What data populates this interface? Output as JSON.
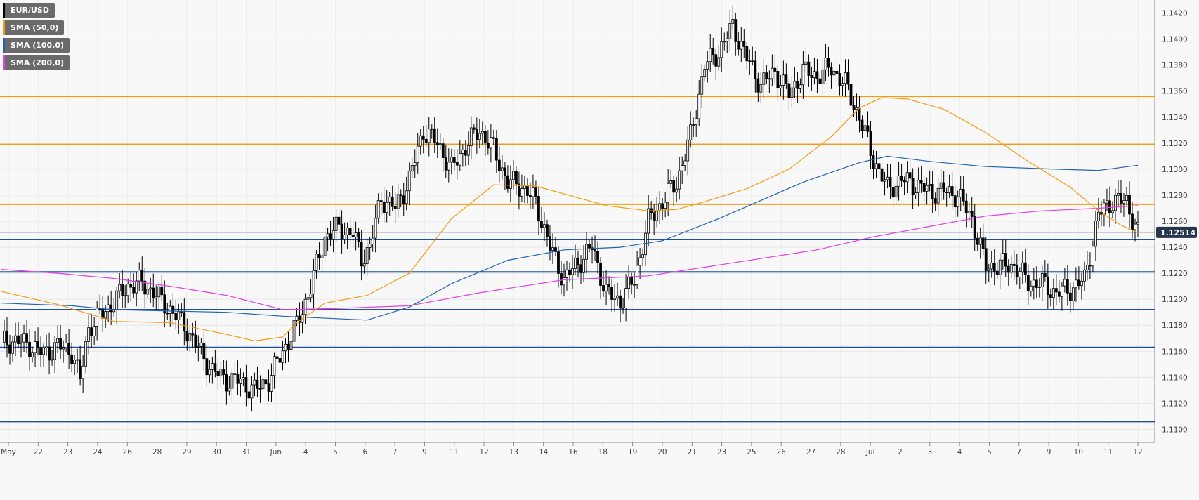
{
  "chart_data": {
    "type": "candlestick",
    "symbol": "EUR/USD",
    "last_price_label": "1.12514",
    "last_price": 1.12514,
    "ylim": [
      1.109,
      1.143
    ],
    "y_ticks": [
      "1.1100",
      "1.1120",
      "1.1140",
      "1.1160",
      "1.1180",
      "1.1200",
      "1.1220",
      "1.1240",
      "1.1260",
      "1.1280",
      "1.1300",
      "1.1320",
      "1.1340",
      "1.1360",
      "1.1380",
      "1.1400",
      "1.1420"
    ],
    "x_ticks": [
      "May",
      "22",
      "23",
      "24",
      "26",
      "28",
      "29",
      "30",
      "31",
      "Jun",
      "4",
      "5",
      "6",
      "7",
      "9",
      "11",
      "12",
      "13",
      "14",
      "16",
      "18",
      "19",
      "20",
      "21",
      "23",
      "25",
      "26",
      "27",
      "28",
      "Jul",
      "2",
      "3",
      "4",
      "5",
      "7",
      "9",
      "10",
      "11",
      "12"
    ],
    "legend": [
      {
        "label": "EUR/USD",
        "color": "#000000"
      },
      {
        "label": "SMA (50,0)",
        "color": "#f39c12"
      },
      {
        "label": "SMA (100,0)",
        "color": "#2162b0"
      },
      {
        "label": "SMA (200,0)",
        "color": "#e040e0"
      }
    ],
    "resistance_levels": [
      1.1356,
      1.1319,
      1.1273
    ],
    "support_levels": [
      1.1246,
      1.1221,
      1.1192,
      1.1163,
      1.1106
    ],
    "current_price_line": 1.12514,
    "price_path": [
      [
        0,
        1.1167
      ],
      [
        5,
        1.1168
      ],
      [
        10,
        1.1165
      ],
      [
        15,
        1.1158
      ],
      [
        20,
        1.1164
      ],
      [
        25,
        1.116
      ],
      [
        28,
        1.1138
      ],
      [
        31,
        1.1178
      ],
      [
        35,
        1.1187
      ],
      [
        40,
        1.1198
      ],
      [
        45,
        1.121
      ],
      [
        50,
        1.1213
      ],
      [
        55,
        1.1203
      ],
      [
        60,
        1.1192
      ],
      [
        65,
        1.118
      ],
      [
        70,
        1.1162
      ],
      [
        75,
        1.1145
      ],
      [
        80,
        1.1138
      ],
      [
        85,
        1.1137
      ],
      [
        90,
        1.113
      ],
      [
        95,
        1.1138
      ],
      [
        100,
        1.116
      ],
      [
        105,
        1.118
      ],
      [
        110,
        1.121
      ],
      [
        115,
        1.1248
      ],
      [
        120,
        1.1255
      ],
      [
        125,
        1.125
      ],
      [
        128,
        1.1232
      ],
      [
        131,
        1.124
      ],
      [
        135,
        1.1278
      ],
      [
        140,
        1.127
      ],
      [
        145,
        1.1292
      ],
      [
        150,
        1.133
      ],
      [
        155,
        1.132
      ],
      [
        160,
        1.13
      ],
      [
        165,
        1.1318
      ],
      [
        170,
        1.133
      ],
      [
        175,
        1.1315
      ],
      [
        180,
        1.129
      ],
      [
        185,
        1.1287
      ],
      [
        190,
        1.1275
      ],
      [
        195,
        1.124
      ],
      [
        200,
        1.1215
      ],
      [
        205,
        1.1228
      ],
      [
        210,
        1.124
      ],
      [
        215,
        1.1205
      ],
      [
        220,
        1.1198
      ],
      [
        225,
        1.1215
      ],
      [
        230,
        1.126
      ],
      [
        235,
        1.1275
      ],
      [
        240,
        1.129
      ],
      [
        245,
        1.1325
      ],
      [
        250,
        1.138
      ],
      [
        255,
        1.139
      ],
      [
        260,
        1.141
      ],
      [
        265,
        1.1385
      ],
      [
        270,
        1.1365
      ],
      [
        275,
        1.1375
      ],
      [
        280,
        1.1358
      ],
      [
        285,
        1.1375
      ],
      [
        290,
        1.1372
      ],
      [
        295,
        1.1378
      ],
      [
        300,
        1.1365
      ],
      [
        305,
        1.134
      ],
      [
        310,
        1.1308
      ],
      [
        315,
        1.1285
      ],
      [
        320,
        1.1292
      ],
      [
        325,
        1.1288
      ],
      [
        330,
        1.1283
      ],
      [
        335,
        1.1283
      ],
      [
        340,
        1.128
      ],
      [
        345,
        1.1262
      ],
      [
        350,
        1.1225
      ],
      [
        355,
        1.1226
      ],
      [
        360,
        1.1226
      ],
      [
        365,
        1.1213
      ],
      [
        370,
        1.1212
      ],
      [
        375,
        1.1205
      ],
      [
        380,
        1.1208
      ],
      [
        385,
        1.1215
      ],
      [
        390,
        1.1265
      ],
      [
        395,
        1.1276
      ],
      [
        400,
        1.1275
      ],
      [
        404,
        1.1251
      ]
    ],
    "sma50_path": [
      [
        0,
        1.1206
      ],
      [
        20,
        1.1196
      ],
      [
        40,
        1.1183
      ],
      [
        60,
        1.1182
      ],
      [
        80,
        1.1173
      ],
      [
        90,
        1.1168
      ],
      [
        100,
        1.1171
      ],
      [
        105,
        1.1182
      ],
      [
        115,
        1.1197
      ],
      [
        130,
        1.1203
      ],
      [
        145,
        1.122
      ],
      [
        160,
        1.1262
      ],
      [
        175,
        1.1288
      ],
      [
        190,
        1.1287
      ],
      [
        200,
        1.1281
      ],
      [
        215,
        1.1272
      ],
      [
        230,
        1.1268
      ],
      [
        240,
        1.1269
      ],
      [
        250,
        1.1275
      ],
      [
        265,
        1.1285
      ],
      [
        280,
        1.13
      ],
      [
        295,
        1.1325
      ],
      [
        305,
        1.1347
      ],
      [
        313,
        1.1355
      ],
      [
        322,
        1.1354
      ],
      [
        335,
        1.1346
      ],
      [
        350,
        1.1328
      ],
      [
        365,
        1.1306
      ],
      [
        380,
        1.1286
      ],
      [
        390,
        1.1268
      ],
      [
        398,
        1.1257
      ],
      [
        404,
        1.1251
      ]
    ],
    "sma100_path": [
      [
        0,
        1.1197
      ],
      [
        25,
        1.1195
      ],
      [
        40,
        1.1192
      ],
      [
        60,
        1.1191
      ],
      [
        80,
        1.119
      ],
      [
        100,
        1.1187
      ],
      [
        130,
        1.1184
      ],
      [
        145,
        1.1194
      ],
      [
        160,
        1.1212
      ],
      [
        180,
        1.123
      ],
      [
        200,
        1.1238
      ],
      [
        220,
        1.124
      ],
      [
        235,
        1.1245
      ],
      [
        255,
        1.1262
      ],
      [
        270,
        1.1276
      ],
      [
        285,
        1.129
      ],
      [
        305,
        1.1305
      ],
      [
        315,
        1.131
      ],
      [
        330,
        1.1306
      ],
      [
        350,
        1.1302
      ],
      [
        375,
        1.13
      ],
      [
        390,
        1.1299
      ],
      [
        404,
        1.1303
      ]
    ],
    "sma200_path": [
      [
        0,
        1.1223
      ],
      [
        20,
        1.122
      ],
      [
        40,
        1.1216
      ],
      [
        60,
        1.121
      ],
      [
        80,
        1.1203
      ],
      [
        100,
        1.1192
      ],
      [
        120,
        1.1193
      ],
      [
        145,
        1.1195
      ],
      [
        170,
        1.1205
      ],
      [
        200,
        1.1215
      ],
      [
        230,
        1.1218
      ],
      [
        260,
        1.1228
      ],
      [
        290,
        1.1238
      ],
      [
        310,
        1.1248
      ],
      [
        330,
        1.1256
      ],
      [
        350,
        1.1264
      ],
      [
        370,
        1.1268
      ],
      [
        390,
        1.127
      ],
      [
        404,
        1.1272
      ]
    ]
  }
}
